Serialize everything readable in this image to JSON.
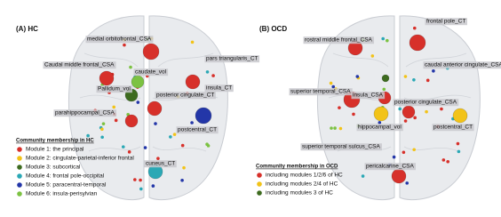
{
  "panels": [
    {
      "title": "(A) HC",
      "labels": [
        "medial orbitofrontal_CSA",
        "pars triangularis_CT",
        "Caudal middle frontal_CSA",
        "caudate_vol",
        "Pallidum_vol",
        "insula_CT",
        "posterior cingulate_CT",
        "parahippocampal_CSA",
        "postcentral_CT",
        "cuneus_CT"
      ],
      "legend": {
        "title": "Community membership in HC",
        "items": [
          {
            "label": "Module 1: the principal",
            "color": "#d7302a"
          },
          {
            "label": "Module 2: cingulate-parietal-inferior frontal",
            "color": "#f2c318"
          },
          {
            "label": "Module 3: subcortical",
            "color": "#3d6b1f"
          },
          {
            "label": "Module 4: frontal pole-occipital",
            "color": "#2aa8b5"
          },
          {
            "label": "Module 5: paracentral-temporal",
            "color": "#2336a8"
          },
          {
            "label": "Module 6: insula-perisylvian",
            "color": "#7cc242"
          }
        ]
      }
    },
    {
      "title": "(B) OCD",
      "labels": [
        "frontal pole_CT",
        "rostral middle frontal_CSA",
        "caudal anterior cingulate_CSA",
        "superior temporal_CSA",
        "insula_CSA",
        "posterior cingulate_CSA",
        "postcentral_CT",
        "hippocampal_vol",
        "superior temporal sulcus_CSA",
        "pericalcarine_CSA"
      ],
      "legend": {
        "title": "Community membership in OCD",
        "items": [
          {
            "label": "including modules 1/2/6 of HC",
            "color": "#d7302a"
          },
          {
            "label": "including modules 2/4 of HC",
            "color": "#f2c318"
          },
          {
            "label": "including modules 3 of HC",
            "color": "#3d6b1f"
          }
        ]
      }
    }
  ]
}
